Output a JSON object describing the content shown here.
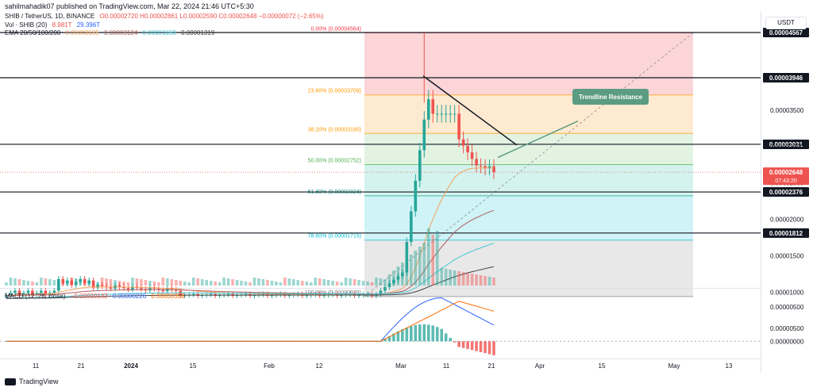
{
  "header": {
    "published": "sahilmahadik07 published on TradingView.com, Mar 22, 2024 21:46 UTC+5:30",
    "symbol": "SHIB / TetherUS, 1D, BINANCE",
    "ohlc": "O0.00002720 H0.00002861 L0.00002590 C0.00002648 −0.00000072 (−2.65%)",
    "volume_label": "Vol · SHIB (20)",
    "volume_vals": [
      "8.981T",
      "29.396T"
    ],
    "ema_label": "EMA 20/50/100/200",
    "ema_vals": [
      "0.00003685",
      "0.00003124",
      "0.00001659",
      "0.00001319"
    ],
    "macd_label": "MACD (12, 26, close)",
    "macd_vals": [
      "−0.00000132",
      "0.00000226",
      "0.00000358"
    ],
    "currency_button": "USDT",
    "footer_brand": "TradingView"
  },
  "colors": {
    "up": "#26a69a",
    "down": "#ef5350",
    "ema20": "#f5a35c",
    "ema50": "#b05f5f",
    "ema100": "#43c7d6",
    "ema200": "#424242",
    "macd": "#2962ff",
    "signal": "#ff6d00",
    "annotation": "#5b9c82"
  },
  "chart_data": {
    "type": "candlestick",
    "price_axis": {
      "ticks": [
        5e-06,
        1e-05,
        1.5e-05,
        2e-05,
        2.5e-05,
        3e-05,
        3.5e-05
      ],
      "tick_labels": [
        "0.00000500",
        "0.00001000",
        "0.00001500",
        "0.00002000",
        "0.00002500",
        "0.00003000",
        "0.00003500"
      ]
    },
    "time_axis": {
      "labels": [
        "11",
        "21",
        "2024",
        "15",
        "Feb",
        "12",
        "Mar",
        "11",
        "21",
        "Apr",
        "15",
        "May",
        "13"
      ],
      "bold": [
        "2024"
      ]
    },
    "fib_levels": [
      {
        "label": "0.00% (0.00004564)",
        "value": 4.564e-05
      },
      {
        "label": "23.60% (0.00003709)",
        "value": 3.709e-05
      },
      {
        "label": "38.20% (0.00003180)",
        "value": 3.18e-05
      },
      {
        "label": "50.00% (0.00002752)",
        "value": 2.752e-05
      },
      {
        "label": "61.80% (0.00002324)",
        "value": 2.324e-05
      },
      {
        "label": "78.60% (0.00001715)",
        "value": 1.715e-05
      },
      {
        "label": "100.00% (0.00000939)",
        "value": 9.39e-06
      }
    ],
    "horizontal_levels": [
      {
        "label": "0.00004567",
        "value": 4.567e-05
      },
      {
        "label": "0.00003946",
        "value": 3.946e-05
      },
      {
        "label": "0.00003031",
        "value": 3.031e-05
      },
      {
        "label": "0.00002376",
        "value": 2.376e-05
      },
      {
        "label": "0.00001812",
        "value": 1.812e-05
      }
    ],
    "current_price": {
      "label": "0.00002648",
      "countdown": "07:43:20",
      "value": 2.648e-05
    },
    "annotation": "Trendline Resistance",
    "macd_axis": {
      "ticks": [
        5e-06,
        0.0
      ],
      "tick_labels": [
        "0.00000500",
        "0.00000000"
      ]
    }
  }
}
